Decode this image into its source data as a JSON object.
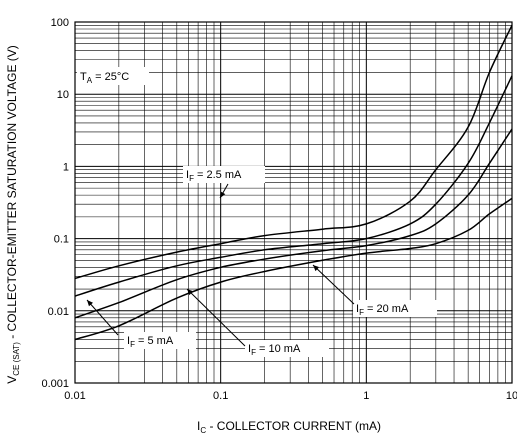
{
  "chart_data": {
    "type": "line",
    "title": "",
    "x_scale": "log",
    "y_scale": "log",
    "xlim": [
      0.01,
      10
    ],
    "ylim": [
      0.001,
      100
    ],
    "grid": true,
    "xlabel": {
      "prefix": "I",
      "sub": "C",
      "rest": " - COLLECTOR CURRENT (mA)"
    },
    "ylabel": {
      "prefix": "V",
      "sub": "CE (SAT)",
      "rest": " - COLLECTOR-EMITTER SATURATION VOLTAGE (V)"
    },
    "x_ticks": [
      {
        "value": 0.01,
        "label": "0.01"
      },
      {
        "value": 0.1,
        "label": "0.1"
      },
      {
        "value": 1,
        "label": "1"
      },
      {
        "value": 10,
        "label": "10"
      }
    ],
    "y_ticks": [
      {
        "value": 0.001,
        "label": "0.001"
      },
      {
        "value": 0.01,
        "label": "0.01"
      },
      {
        "value": 0.1,
        "label": "0.1"
      },
      {
        "value": 1,
        "label": "1"
      },
      {
        "value": 10,
        "label": "10"
      },
      {
        "value": 100,
        "label": "100"
      }
    ],
    "temperature_note": {
      "prefix": "T",
      "sub": "A",
      "rest": " = 25°C"
    },
    "series": [
      {
        "label": {
          "prefix": "I",
          "sub": "F",
          "rest": " = 2.5 mA"
        },
        "x": [
          0.01,
          0.02,
          0.05,
          0.1,
          0.2,
          0.5,
          1,
          2,
          3,
          5,
          7,
          10
        ],
        "y": [
          0.028,
          0.042,
          0.065,
          0.085,
          0.11,
          0.135,
          0.16,
          0.33,
          0.9,
          3.5,
          20,
          90
        ]
      },
      {
        "label": {
          "prefix": "I",
          "sub": "F",
          "rest": " = 5 mA"
        },
        "x": [
          0.01,
          0.02,
          0.05,
          0.1,
          0.2,
          0.5,
          1,
          2,
          3,
          5,
          7,
          10
        ],
        "y": [
          0.016,
          0.025,
          0.042,
          0.055,
          0.07,
          0.085,
          0.1,
          0.16,
          0.3,
          1.1,
          4,
          18
        ]
      },
      {
        "label": {
          "prefix": "I",
          "sub": "F",
          "rest": " = 10 mA"
        },
        "x": [
          0.01,
          0.02,
          0.05,
          0.1,
          0.2,
          0.5,
          1,
          2,
          3,
          5,
          7,
          10
        ],
        "y": [
          0.008,
          0.013,
          0.027,
          0.04,
          0.052,
          0.068,
          0.08,
          0.11,
          0.16,
          0.4,
          1.1,
          3.3
        ]
      },
      {
        "label": {
          "prefix": "I",
          "sub": "F",
          "rest": " = 20 mA"
        },
        "x": [
          0.01,
          0.02,
          0.05,
          0.1,
          0.2,
          0.5,
          1,
          2,
          3,
          5,
          7,
          10
        ],
        "y": [
          0.004,
          0.0062,
          0.015,
          0.025,
          0.035,
          0.05,
          0.063,
          0.073,
          0.085,
          0.13,
          0.22,
          0.36
        ]
      }
    ]
  }
}
